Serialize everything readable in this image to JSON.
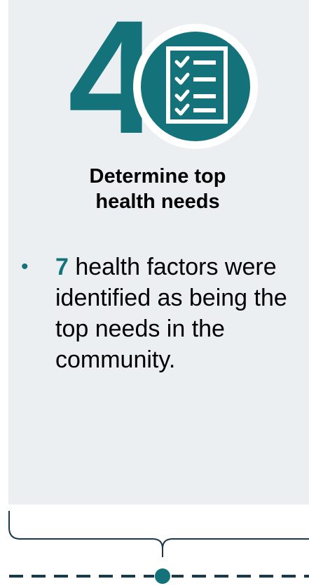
{
  "step": {
    "number": "4",
    "icon": "checklist-icon",
    "title_line1": "Determine top",
    "title_line2": "health needs"
  },
  "bullet": {
    "marker": "•",
    "count": "7",
    "text": " health factors were identified as being the top needs in the community."
  },
  "colors": {
    "accent": "#14737a",
    "card_background": "#ebeff2",
    "text": "#000000",
    "timeline": "#1a3a4a"
  }
}
